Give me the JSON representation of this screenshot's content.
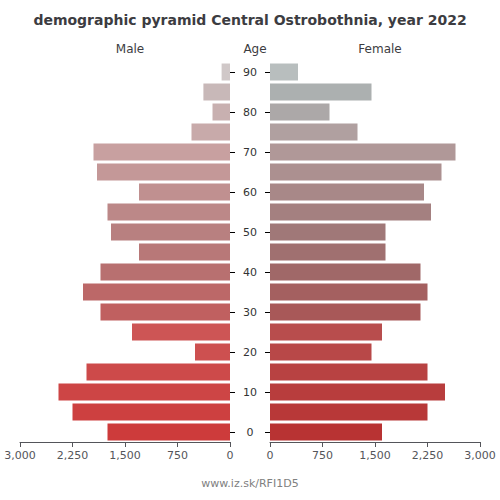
{
  "chart_data": {
    "type": "bar",
    "orientation": "horizontal",
    "title": "demographic pyramid Central Ostrobothnia, year 2022",
    "annotations": [
      "www.iz.sk/RFI1D5"
    ],
    "ylabel": "Age",
    "categories": [
      "0",
      null,
      "10",
      null,
      "20",
      null,
      "30",
      null,
      "40",
      null,
      "50",
      null,
      "60",
      null,
      "70",
      null,
      "80",
      null,
      "90"
    ],
    "series": [
      {
        "name": "Male",
        "values": [
          1750,
          2250,
          2450,
          2050,
          500,
          1400,
          1850,
          2100,
          1850,
          1300,
          1700,
          1750,
          1300,
          1900,
          1950,
          550,
          250,
          380,
          120
        ],
        "colors": [
          "#cd3b3b",
          "#cd4040",
          "#cd4545",
          "#cd4a4a",
          "#cd5050",
          "#cd5555",
          "#c06060",
          "#bc6868",
          "#b87070",
          "#b87878",
          "#b88080",
          "#bc8888",
          "#c09090",
          "#c49898",
          "#c8a0a0",
          "#c8aaaa",
          "#c8b0b0",
          "#c8b8b8",
          "#d0c8c8"
        ]
      },
      {
        "name": "Female",
        "values": [
          1600,
          2250,
          2500,
          2250,
          1450,
          1600,
          2150,
          2250,
          2150,
          1650,
          1650,
          2300,
          2200,
          2450,
          2650,
          1250,
          850,
          1450,
          400
        ],
        "colors": [
          "#b83333",
          "#b83838",
          "#b83d3d",
          "#b84242",
          "#b84848",
          "#b84d4d",
          "#a85858",
          "#a46060",
          "#a06868",
          "#a07070",
          "#a07878",
          "#a48080",
          "#a88888",
          "#ac9090",
          "#b09898",
          "#b0a0a0",
          "#aca8a8",
          "#acb0b0",
          "#b8bebe"
        ]
      }
    ],
    "xlim": [
      0,
      3000
    ],
    "xticks": [
      0,
      750,
      1500,
      2250,
      3000
    ],
    "grid": false
  }
}
